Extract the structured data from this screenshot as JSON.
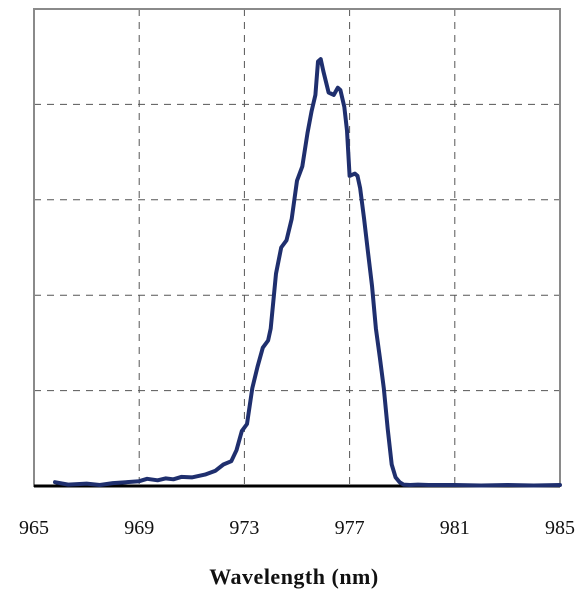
{
  "chart_data": {
    "type": "line",
    "title": "",
    "xlabel": "Wavelength (nm)",
    "ylabel": "",
    "xlim": [
      965,
      985
    ],
    "ylim": [
      0,
      100
    ],
    "x_ticks": [
      965,
      969,
      973,
      977,
      981,
      985
    ],
    "x_tick_labels": [
      "965",
      "969",
      "973",
      "977",
      "981",
      "985"
    ],
    "y_grid_values": [
      20,
      40,
      60,
      80
    ],
    "grid": true,
    "legend": "none",
    "series": [
      {
        "color": "#1f2f6e",
        "x": [
          965.8,
          966.3,
          967.0,
          967.5,
          968.0,
          968.5,
          969.0,
          969.3,
          969.7,
          970.0,
          970.3,
          970.6,
          971.0,
          971.5,
          971.9,
          972.2,
          972.5,
          972.7,
          972.9,
          973.1,
          973.3,
          973.5,
          973.7,
          973.9,
          974.0,
          974.2,
          974.4,
          974.6,
          974.8,
          975.0,
          975.2,
          975.4,
          975.55,
          975.7,
          975.8,
          975.9,
          976.0,
          976.2,
          976.4,
          976.55,
          976.65,
          976.8,
          976.9,
          977.0,
          977.2,
          977.3,
          977.4,
          977.55,
          977.7,
          977.85,
          978.0,
          978.15,
          978.3,
          978.45,
          978.6,
          978.75,
          978.9,
          979.05,
          979.3,
          979.6,
          980.0,
          981.0,
          982.0,
          983.0,
          984.0,
          985.0
        ],
        "y": [
          0.8,
          0.3,
          0.5,
          0.2,
          0.6,
          0.8,
          1.0,
          1.5,
          1.2,
          1.6,
          1.4,
          1.9,
          1.8,
          2.4,
          3.2,
          4.5,
          5.2,
          7.5,
          11.5,
          13.0,
          20.5,
          25.0,
          29.0,
          30.5,
          33.0,
          44.5,
          50.0,
          51.5,
          56.0,
          64.0,
          67.0,
          74.0,
          78.5,
          82.0,
          89.0,
          89.5,
          87.0,
          82.5,
          82.0,
          83.5,
          83.0,
          79.5,
          74.5,
          65.0,
          65.5,
          65.0,
          62.5,
          56.0,
          49.0,
          42.0,
          33.0,
          27.0,
          20.5,
          12.0,
          4.5,
          1.8,
          0.8,
          0.3,
          0.2,
          0.3,
          0.2,
          0.2,
          0.1,
          0.2,
          0.1,
          0.2
        ]
      }
    ]
  }
}
